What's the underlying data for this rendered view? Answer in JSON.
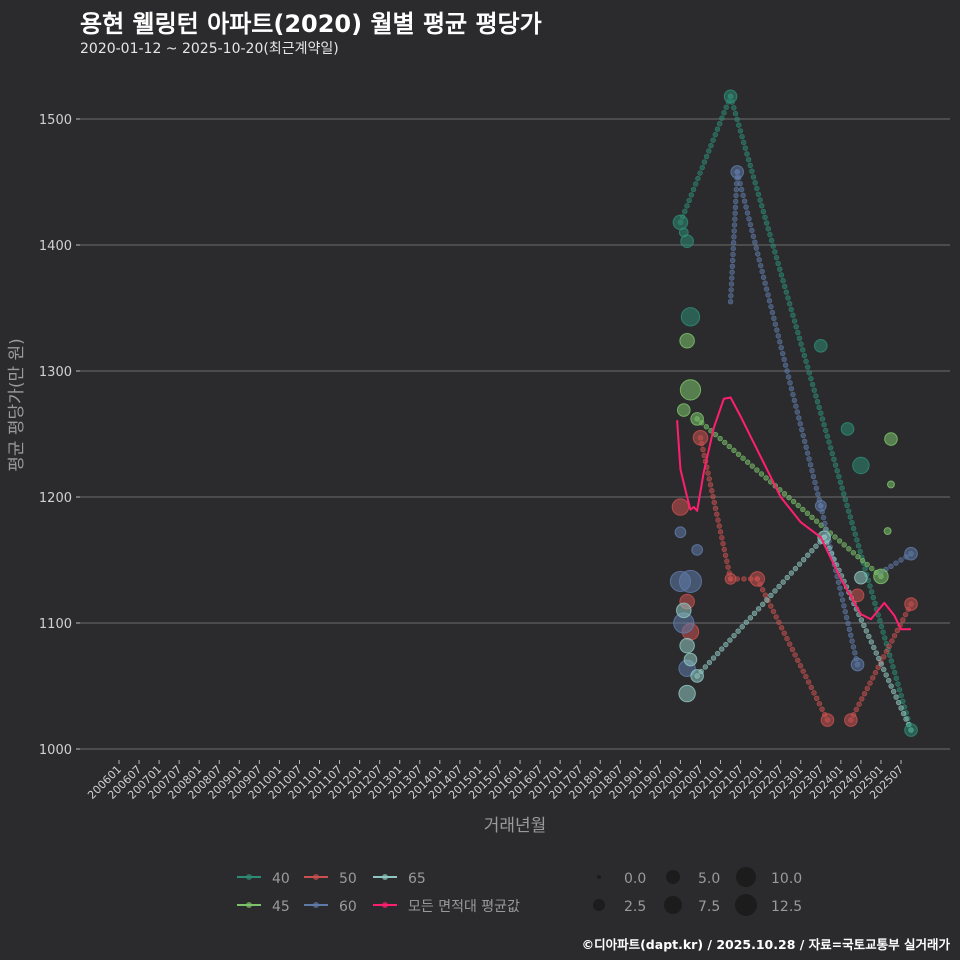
{
  "header": {
    "title": "용현 웰링턴 아파트(2020) 월별 평균 평당가",
    "subtitle": "2020-01-12 ~ 2025-10-20(최근계약일)"
  },
  "caption": "©디아파트(dapt.kr) / 2025.10.28 / 자료=국토교통부 실거래가",
  "chart_data": {
    "type": "scatter",
    "title": "용현 웰링턴 아파트(2020) 월별 평균 평당가",
    "subtitle": "2020-01-12 ~ 2025-10-20(최근계약일)",
    "xlabel": "거래년월",
    "ylabel": "평균 평당가(만 원)",
    "ylim": [
      1000,
      1530
    ],
    "yticks": [
      1000,
      1100,
      1200,
      1300,
      1400,
      1500
    ],
    "xticks": [
      "200601",
      "200607",
      "200701",
      "200707",
      "200801",
      "200807",
      "200901",
      "200907",
      "201001",
      "201007",
      "201101",
      "201107",
      "201201",
      "201207",
      "201301",
      "201307",
      "201401",
      "201407",
      "201501",
      "201507",
      "201601",
      "201607",
      "201701",
      "201707",
      "201801",
      "201807",
      "201901",
      "201907",
      "202001",
      "202007",
      "202101",
      "202107",
      "202201",
      "202207",
      "202301",
      "202307",
      "202401",
      "202407",
      "202501",
      "202507"
    ],
    "grid": "horizontal major",
    "legend_position": "bottom",
    "size_legend": {
      "title": "",
      "values": [
        "0.0",
        "2.5",
        "5.0",
        "7.5",
        "10.0",
        "12.5"
      ]
    },
    "series": [
      {
        "name": "40",
        "color": "#2e8b74",
        "points": [
          {
            "x": "202001",
            "y": 1418,
            "size": 5
          },
          {
            "x": "202002",
            "y": 1410,
            "size": 2
          },
          {
            "x": "202003",
            "y": 1403,
            "size": 4
          },
          {
            "x": "202004",
            "y": 1343,
            "size": 7
          },
          {
            "x": "202104",
            "y": 1518,
            "size": 4
          },
          {
            "x": "202307",
            "y": 1320,
            "size": 4
          },
          {
            "x": "202403",
            "y": 1254,
            "size": 4
          },
          {
            "x": "202407",
            "y": 1225,
            "size": 6
          },
          {
            "x": "202510",
            "y": 1015,
            "size": 4
          }
        ]
      },
      {
        "name": "45",
        "color": "#7cc26a",
        "points": [
          {
            "x": "202003",
            "y": 1324,
            "size": 5
          },
          {
            "x": "202002",
            "y": 1269,
            "size": 4
          },
          {
            "x": "202004",
            "y": 1285,
            "size": 8
          },
          {
            "x": "202006",
            "y": 1262,
            "size": 4
          },
          {
            "x": "202501",
            "y": 1137,
            "size": 5
          },
          {
            "x": "202504",
            "y": 1246,
            "size": 4
          },
          {
            "x": "202504",
            "y": 1210,
            "size": 1
          },
          {
            "x": "202503",
            "y": 1173,
            "size": 1
          }
        ]
      },
      {
        "name": "50",
        "color": "#c8504f",
        "points": [
          {
            "x": "202001",
            "y": 1192,
            "size": 6
          },
          {
            "x": "202007",
            "y": 1247,
            "size": 5
          },
          {
            "x": "202104",
            "y": 1135,
            "size": 3
          },
          {
            "x": "202112",
            "y": 1135,
            "size": 5
          },
          {
            "x": "202003",
            "y": 1117,
            "size": 5
          },
          {
            "x": "202004",
            "y": 1093,
            "size": 6
          },
          {
            "x": "202309",
            "y": 1023,
            "size": 4
          },
          {
            "x": "202404",
            "y": 1023,
            "size": 4
          },
          {
            "x": "202406",
            "y": 1122,
            "size": 4
          },
          {
            "x": "202510",
            "y": 1115,
            "size": 4
          }
        ]
      },
      {
        "name": "60",
        "color": "#5f7aa8",
        "points": [
          {
            "x": "202001",
            "y": 1172,
            "size": 3
          },
          {
            "x": "202006",
            "y": 1158,
            "size": 3
          },
          {
            "x": "202001",
            "y": 1133,
            "size": 8
          },
          {
            "x": "202004",
            "y": 1133,
            "size": 9
          },
          {
            "x": "202002",
            "y": 1100,
            "size": 8
          },
          {
            "x": "202003",
            "y": 1064,
            "size": 6
          },
          {
            "x": "202106",
            "y": 1458,
            "size": 4
          },
          {
            "x": "202307",
            "y": 1193,
            "size": 3
          },
          {
            "x": "202406",
            "y": 1067,
            "size": 4
          },
          {
            "x": "202510",
            "y": 1155,
            "size": 4
          }
        ]
      },
      {
        "name": "65",
        "color": "#8ec7c1",
        "points": [
          {
            "x": "202003",
            "y": 1044,
            "size": 6
          },
          {
            "x": "202006",
            "y": 1058,
            "size": 4
          },
          {
            "x": "202002",
            "y": 1110,
            "size": 5
          },
          {
            "x": "202003",
            "y": 1082,
            "size": 5
          },
          {
            "x": "202004",
            "y": 1071,
            "size": 4
          },
          {
            "x": "202308",
            "y": 1168,
            "size": 4
          },
          {
            "x": "202407",
            "y": 1136,
            "size": 4
          }
        ]
      },
      {
        "name": "모든 면적대 평균값",
        "color": "#ff1f6e",
        "type": "line",
        "points": [
          {
            "x": "201912",
            "y": 1261
          },
          {
            "x": "202001",
            "y": 1222
          },
          {
            "x": "202003",
            "y": 1200
          },
          {
            "x": "202004",
            "y": 1190
          },
          {
            "x": "202005",
            "y": 1192
          },
          {
            "x": "202006",
            "y": 1189
          },
          {
            "x": "202008",
            "y": 1220
          },
          {
            "x": "202011",
            "y": 1255
          },
          {
            "x": "202102",
            "y": 1278
          },
          {
            "x": "202104",
            "y": 1279
          },
          {
            "x": "202107",
            "y": 1264
          },
          {
            "x": "202201",
            "y": 1232
          },
          {
            "x": "202207",
            "y": 1200
          },
          {
            "x": "202301",
            "y": 1180
          },
          {
            "x": "202307",
            "y": 1168
          },
          {
            "x": "202401",
            "y": 1135
          },
          {
            "x": "202407",
            "y": 1107
          },
          {
            "x": "202410",
            "y": 1103
          },
          {
            "x": "202502",
            "y": 1116
          },
          {
            "x": "202505",
            "y": 1106
          },
          {
            "x": "202507",
            "y": 1095
          },
          {
            "x": "202510",
            "y": 1095
          }
        ]
      }
    ]
  },
  "legend": {
    "items": [
      {
        "label": "40",
        "color": "#2e8b74"
      },
      {
        "label": "50",
        "color": "#c8504f"
      },
      {
        "label": "65",
        "color": "#8ec7c1"
      },
      {
        "label": "45",
        "color": "#7cc26a"
      },
      {
        "label": "60",
        "color": "#5f7aa8"
      },
      {
        "label": "모든 면적대 평균값",
        "color": "#ff1f6e"
      }
    ],
    "sizes": [
      "0.0",
      "5.0",
      "10.0",
      "2.5",
      "7.5",
      "12.5"
    ]
  }
}
